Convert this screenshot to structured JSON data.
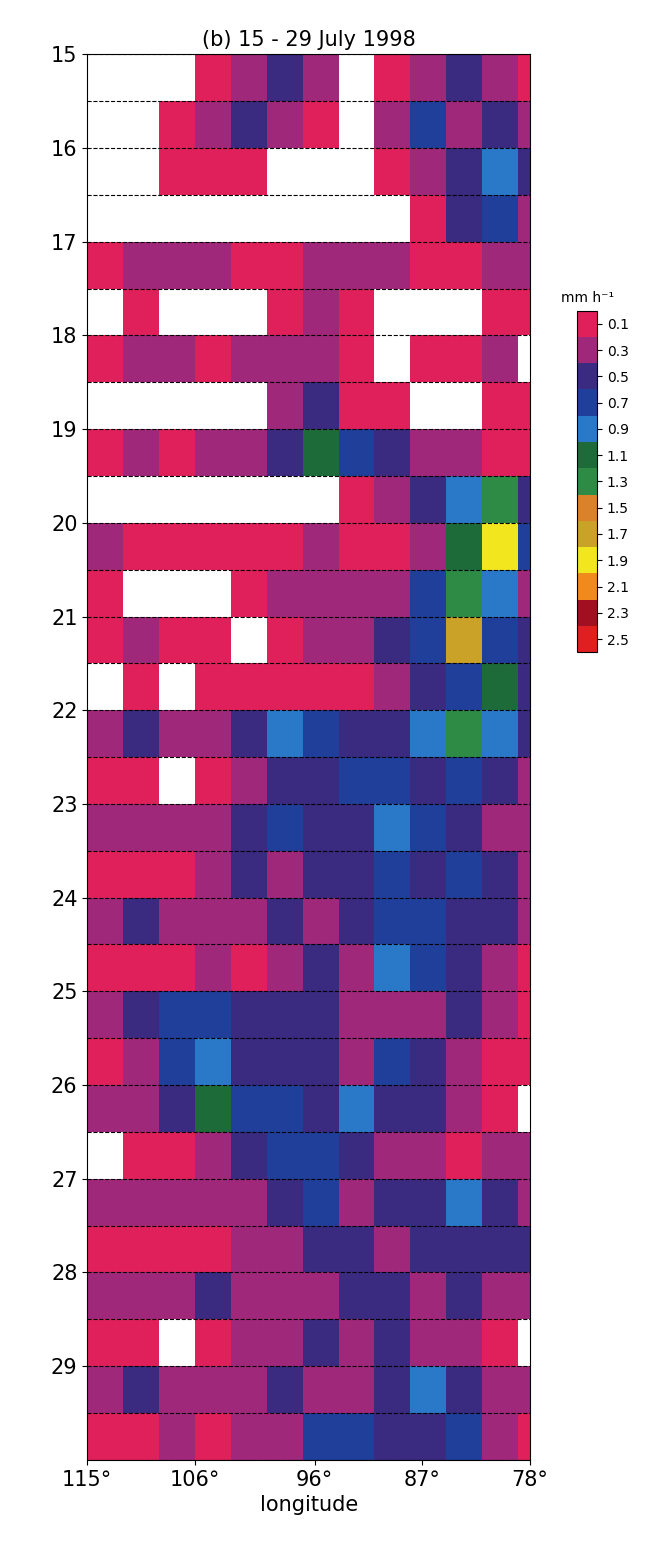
{
  "chart_data": {
    "type": "heatmap",
    "title": "(b) 15 - 29 July 1998",
    "x_label": "longitude",
    "xlim": [
      115,
      78
    ],
    "xticks": [
      {
        "value": 115,
        "label": "115°"
      },
      {
        "value": 106,
        "label": "106°"
      },
      {
        "value": 96,
        "label": "96°"
      },
      {
        "value": 87,
        "label": "87°"
      },
      {
        "value": 78,
        "label": "78°"
      }
    ],
    "ylim": [
      30,
      15
    ],
    "yticks": [
      15,
      16,
      17,
      18,
      19,
      20,
      21,
      22,
      23,
      24,
      25,
      26,
      27,
      28,
      29
    ],
    "grid": true,
    "x_edges": [
      115,
      112,
      109,
      106,
      103,
      100,
      97,
      94,
      91,
      88,
      85,
      82,
      79,
      78
    ],
    "y_edges": [
      15,
      15.5,
      16,
      16.5,
      17,
      17.5,
      18,
      18.5,
      19,
      19.5,
      20,
      20.5,
      21,
      21.5,
      22,
      22.5,
      23,
      23.5,
      24,
      24.5,
      25,
      25.5,
      26,
      26.5,
      27,
      27.5,
      28,
      28.5,
      29,
      29.5,
      30
    ],
    "cells": [
      [
        null,
        null,
        null,
        0.1,
        0.3,
        0.5,
        0.3,
        null,
        0.1,
        0.3,
        0.5,
        0.3,
        0.1
      ],
      [
        null,
        null,
        0.1,
        0.3,
        0.5,
        0.3,
        0.1,
        null,
        0.3,
        0.7,
        0.3,
        0.5,
        0.3
      ],
      [
        null,
        null,
        0.1,
        0.1,
        0.1,
        null,
        null,
        null,
        0.1,
        0.3,
        0.5,
        0.9,
        0.5
      ],
      [
        null,
        null,
        null,
        null,
        null,
        null,
        null,
        null,
        null,
        0.1,
        0.5,
        0.7,
        0.3
      ],
      [
        0.1,
        0.3,
        0.3,
        0.3,
        0.1,
        0.1,
        0.3,
        0.3,
        0.3,
        0.1,
        0.1,
        0.3,
        0.3
      ],
      [
        null,
        0.1,
        null,
        null,
        null,
        0.1,
        0.3,
        0.1,
        null,
        null,
        null,
        0.1,
        0.1
      ],
      [
        0.1,
        0.3,
        0.3,
        0.1,
        0.3,
        0.3,
        0.3,
        0.1,
        null,
        0.1,
        0.1,
        0.3,
        null
      ],
      [
        null,
        null,
        null,
        null,
        null,
        0.3,
        0.5,
        0.1,
        0.1,
        null,
        null,
        0.1,
        0.1
      ],
      [
        0.1,
        0.3,
        0.1,
        0.3,
        0.3,
        0.5,
        1.1,
        0.7,
        0.5,
        0.3,
        0.3,
        0.1,
        0.1
      ],
      [
        null,
        null,
        null,
        null,
        null,
        null,
        null,
        0.1,
        0.3,
        0.5,
        0.9,
        1.3,
        0.5
      ],
      [
        0.3,
        0.1,
        0.1,
        0.1,
        0.1,
        0.1,
        0.3,
        0.1,
        0.1,
        0.3,
        1.1,
        1.9,
        0.7
      ],
      [
        0.1,
        null,
        null,
        null,
        0.1,
        0.3,
        0.3,
        0.3,
        0.3,
        0.7,
        1.3,
        0.9,
        0.3
      ],
      [
        0.1,
        0.3,
        0.1,
        0.1,
        null,
        0.1,
        0.3,
        0.3,
        0.5,
        0.7,
        1.7,
        0.7,
        0.5
      ],
      [
        null,
        0.1,
        null,
        0.1,
        0.1,
        0.1,
        0.1,
        0.1,
        0.3,
        0.5,
        0.7,
        1.1,
        0.5
      ],
      [
        0.3,
        0.5,
        0.3,
        0.3,
        0.5,
        0.9,
        0.7,
        0.5,
        0.5,
        0.9,
        1.3,
        0.9,
        0.5
      ],
      [
        0.1,
        0.1,
        null,
        0.1,
        0.3,
        0.5,
        0.5,
        0.7,
        0.7,
        0.5,
        0.7,
        0.5,
        0.3
      ],
      [
        0.3,
        0.3,
        0.3,
        0.3,
        0.5,
        0.7,
        0.5,
        0.5,
        0.9,
        0.7,
        0.5,
        0.3,
        0.3
      ],
      [
        0.1,
        0.1,
        0.1,
        0.3,
        0.5,
        0.3,
        0.5,
        0.5,
        0.7,
        0.5,
        0.7,
        0.5,
        0.3
      ],
      [
        0.3,
        0.5,
        0.3,
        0.3,
        0.3,
        0.5,
        0.3,
        0.5,
        0.7,
        0.7,
        0.5,
        0.5,
        0.3
      ],
      [
        0.1,
        0.1,
        0.1,
        0.3,
        0.1,
        0.3,
        0.5,
        0.3,
        0.9,
        0.7,
        0.5,
        0.3,
        0.1
      ],
      [
        0.3,
        0.5,
        0.7,
        0.7,
        0.5,
        0.5,
        0.5,
        0.3,
        0.3,
        0.3,
        0.5,
        0.3,
        0.1
      ],
      [
        0.1,
        0.3,
        0.7,
        0.9,
        0.5,
        0.5,
        0.5,
        0.3,
        0.7,
        0.5,
        0.3,
        0.1,
        0.1
      ],
      [
        0.3,
        0.3,
        0.5,
        1.1,
        0.7,
        0.7,
        0.5,
        0.9,
        0.5,
        0.5,
        0.3,
        0.1,
        null
      ],
      [
        null,
        0.1,
        0.1,
        0.3,
        0.5,
        0.7,
        0.7,
        0.5,
        0.3,
        0.3,
        0.1,
        0.3,
        0.3
      ],
      [
        0.3,
        0.3,
        0.3,
        0.3,
        0.3,
        0.5,
        0.7,
        0.3,
        0.5,
        0.5,
        0.9,
        0.5,
        0.3
      ],
      [
        0.1,
        0.1,
        0.1,
        0.1,
        0.3,
        0.3,
        0.5,
        0.5,
        0.3,
        0.5,
        0.5,
        0.5,
        0.5
      ],
      [
        0.3,
        0.3,
        0.3,
        0.5,
        0.3,
        0.3,
        0.3,
        0.5,
        0.5,
        0.3,
        0.5,
        0.3,
        0.3
      ],
      [
        0.1,
        0.1,
        null,
        0.1,
        0.3,
        0.3,
        0.5,
        0.3,
        0.5,
        0.3,
        0.3,
        0.1,
        null
      ],
      [
        0.3,
        0.5,
        0.3,
        0.3,
        0.3,
        0.5,
        0.3,
        0.3,
        0.5,
        0.9,
        0.5,
        0.3,
        0.3
      ],
      [
        0.1,
        0.1,
        0.3,
        0.1,
        0.3,
        0.3,
        0.7,
        0.7,
        0.5,
        0.5,
        0.7,
        0.3,
        0.1
      ]
    ],
    "colors": [
      "#e0205a",
      "#a0287a",
      "#3a2a80",
      "#1f3f9a",
      "#2a78c8",
      "#1e6b3a",
      "#2e8b45",
      "#d9822b",
      "#c9a227",
      "#f2e61e",
      "#f08a1c",
      "#a01020",
      "#e02020"
    ],
    "colorbar_label": "mm h⁻¹",
    "colorbar_bounds": [
      0,
      0.2,
      0.4,
      0.6,
      0.8,
      1.0,
      1.2,
      1.4,
      1.6,
      1.8,
      2.0,
      2.2,
      2.4,
      2.6
    ],
    "colorbar_lim": [
      0,
      2.6
    ],
    "colorbar_ticks": [
      0.1,
      0.3,
      0.5,
      0.7,
      0.9,
      1.1,
      1.3,
      1.5,
      1.7,
      1.9,
      2.1,
      2.3,
      2.5
    ]
  }
}
